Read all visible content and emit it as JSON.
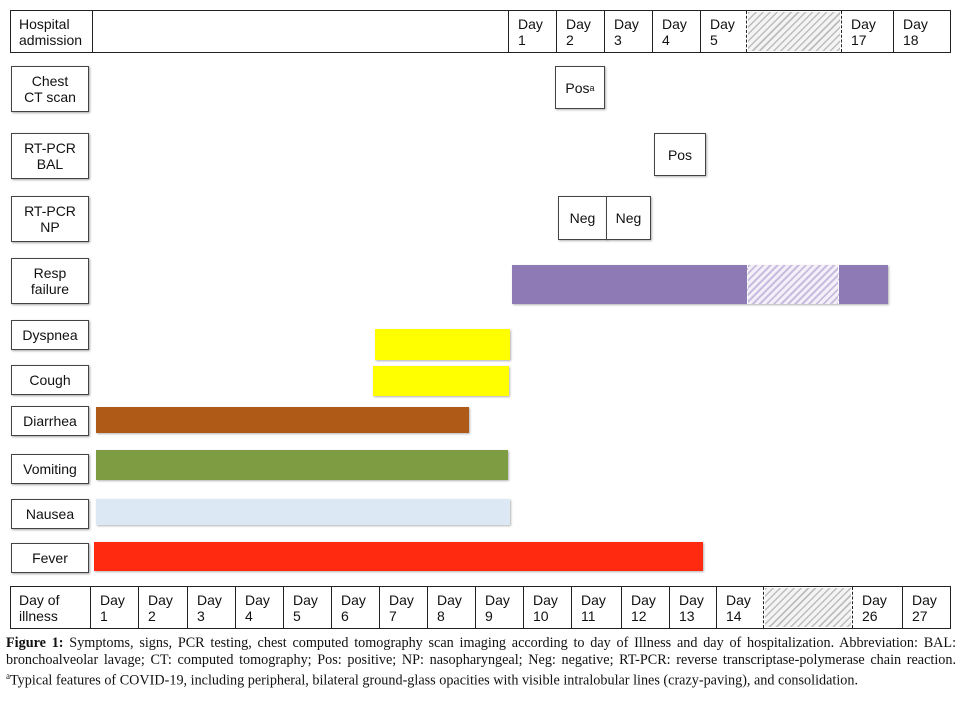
{
  "admission": {
    "label": "Hospital\nadmission",
    "days": [
      "Day\n1",
      "Day\n2",
      "Day\n3",
      "Day\n4",
      "Day\n5",
      "Day\n17",
      "Day\n18"
    ]
  },
  "illness": {
    "label": "Day of\nillness",
    "days": [
      "Day\n1",
      "Day\n2",
      "Day\n3",
      "Day\n4",
      "Day\n5",
      "Day\n6",
      "Day\n7",
      "Day\n8",
      "Day\n9",
      "Day\n10",
      "Day\n11",
      "Day\n12",
      "Day\n13",
      "Day\n14",
      "Day\n26",
      "Day\n27"
    ]
  },
  "rows": {
    "chest_ct": "Chest\nCT scan",
    "rtpcr_bal": "RT-PCR\nBAL",
    "rtpcr_np": "RT-PCR\nNP",
    "resp_failure": "Resp\nfailure",
    "dyspnea": "Dyspnea",
    "cough": "Cough",
    "diarrhea": "Diarrhea",
    "vomiting": "Vomiting",
    "nausea": "Nausea",
    "fever": "Fever"
  },
  "tests": {
    "ct_result": "Pos",
    "ct_result_sup": "a",
    "bal_result": "Pos",
    "np_result_1": "Neg",
    "np_result_2": "Neg"
  },
  "colors": {
    "resp_failure": "#8e7bb6",
    "dyspnea": "#ffff00",
    "cough": "#ffff00",
    "diarrhea": "#b05a17",
    "vomiting": "#7e9d43",
    "nausea": "#dde8f5",
    "fever": "#ff2a10"
  },
  "caption": {
    "fig_label": "Figure 1:",
    "text": " Symptoms, signs, PCR testing, chest computed tomography scan imaging according to day of Illness and day of hospitalization. Abbreviation: BAL: bronchoalveolar lavage; CT: computed tomography; Pos: positive; NP: nasopharyngeal; Neg: negative; RT-PCR: reverse transcriptase-polymerase chain reaction. ",
    "note_mark": "a",
    "note": "Typical features of COVID-19, including peripheral, bilateral ground-glass opacities with visible intralobular lines (crazy-paving), and consolidation."
  }
}
